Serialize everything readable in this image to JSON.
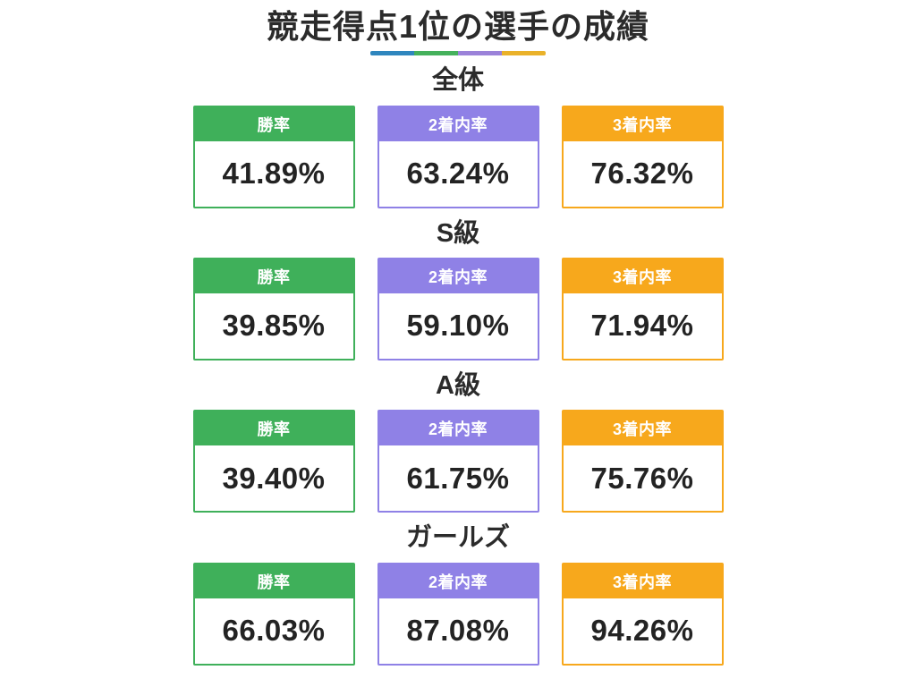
{
  "title": "競走得点1位の選手の成績",
  "metric_labels": [
    "勝率",
    "2着内率",
    "3着内率"
  ],
  "sections": [
    {
      "heading": "全体",
      "values": [
        "41.89%",
        "63.24%",
        "76.32%"
      ]
    },
    {
      "heading": "S級",
      "values": [
        "39.85%",
        "59.10%",
        "71.94%"
      ]
    },
    {
      "heading": "A級",
      "values": [
        "39.40%",
        "61.75%",
        "75.76%"
      ]
    },
    {
      "heading": "ガールズ",
      "values": [
        "66.03%",
        "87.08%",
        "94.26%"
      ]
    }
  ],
  "colors": {
    "win_rate": "#3fb05a",
    "top2_rate": "#8f81e6",
    "top3_rate": "#f7a81c",
    "title_underline": [
      "#2f86be",
      "#45b15c",
      "#9b82d9",
      "#eab22a"
    ],
    "text": "#2b2b2b"
  },
  "chart_data": {
    "type": "table",
    "title": "競走得点1位の選手の成績",
    "categories": [
      "全体",
      "S級",
      "A級",
      "ガールズ"
    ],
    "series": [
      {
        "name": "勝率",
        "values": [
          41.89,
          39.85,
          39.4,
          66.03
        ]
      },
      {
        "name": "2着内率",
        "values": [
          63.24,
          59.1,
          61.75,
          87.08
        ]
      },
      {
        "name": "3着内率",
        "values": [
          76.32,
          71.94,
          75.76,
          94.26
        ]
      }
    ],
    "unit": "%",
    "legend_position": "none",
    "grid": false
  }
}
